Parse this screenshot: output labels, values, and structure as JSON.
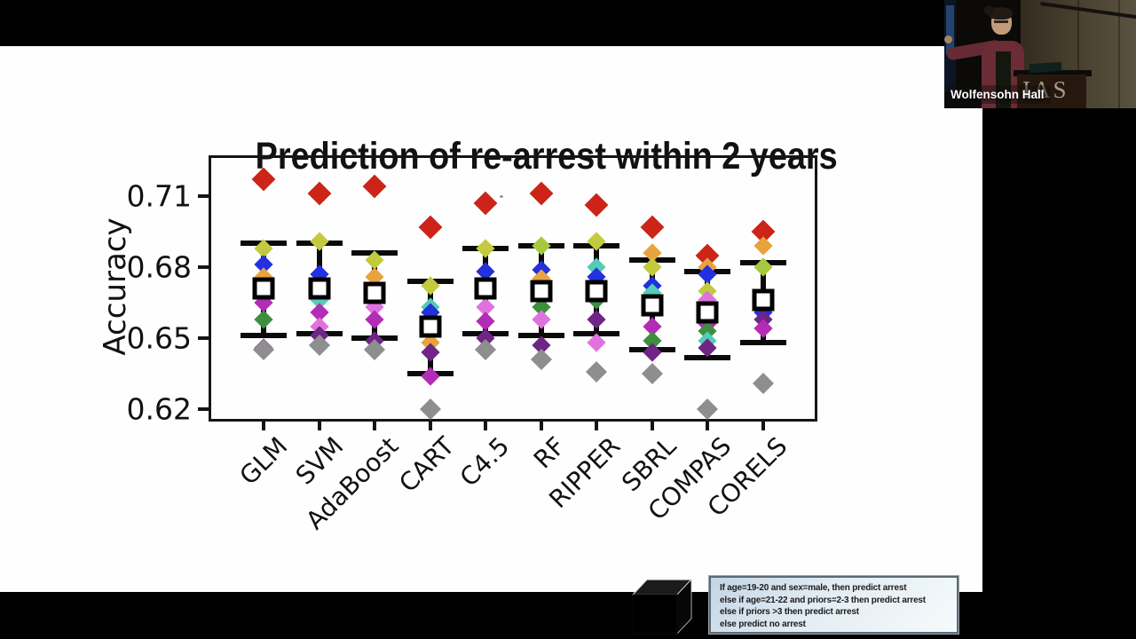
{
  "webcam": {
    "location_label": "Wolfensohn Hall",
    "podium_text": "IAS"
  },
  "slide": {
    "title": "Prediction of re-arrest within 2 years",
    "rule_box_lines": [
      "If age=19-20 and sex=male, then predict arrest",
      "else if age=21-22 and priors=2-3 then predict arrest",
      "else if priors >3 then predict arrest",
      "else predict no arrest"
    ]
  },
  "chart_data": {
    "type": "scatter",
    "title": "Prediction of re-arrest within 2 years",
    "xlabel": "",
    "ylabel": "Accuracy",
    "categories": [
      "GLM",
      "SVM",
      "AdaBoost",
      "CART",
      "C4.5",
      "RF",
      "RIPPER",
      "SBRL",
      "COMPAS",
      "CORELS"
    ],
    "ytick_values": [
      0.71,
      0.68,
      0.65,
      0.62
    ],
    "ytick_labels": [
      "0.71",
      "0.68",
      "0.65",
      "0.62"
    ],
    "ylim": [
      0.616,
      0.726
    ],
    "grid": false,
    "legend": "none",
    "point_marker": "diamond",
    "mean_marker": "open-square-with-error-bars",
    "palette": {
      "red": "#cc2418",
      "orange": "#e8a33c",
      "khaki": "#c2ca3e",
      "lime": "#a5c93e",
      "blue": "#2231dd",
      "teal": "#56cbb8",
      "green": "#3c8f3f",
      "magenta": "#b32cb5",
      "orchid": "#df72df",
      "purple": "#6e2585",
      "gray": "#8e8e8e"
    },
    "columns": [
      {
        "label": "GLM",
        "mean": 0.671,
        "whisker_low": 0.651,
        "whisker_high": 0.69,
        "points": [
          {
            "c": "red",
            "v": 0.717
          },
          {
            "c": "khaki",
            "v": 0.688
          },
          {
            "c": "blue",
            "v": 0.681
          },
          {
            "c": "orange",
            "v": 0.676
          },
          {
            "c": "magenta",
            "v": 0.665
          },
          {
            "c": "green",
            "v": 0.658
          },
          {
            "c": "purple",
            "v": 0.646
          },
          {
            "c": "gray",
            "v": 0.645
          }
        ]
      },
      {
        "label": "SVM",
        "mean": 0.671,
        "whisker_low": 0.652,
        "whisker_high": 0.69,
        "points": [
          {
            "c": "red",
            "v": 0.711
          },
          {
            "c": "khaki",
            "v": 0.691
          },
          {
            "c": "blue",
            "v": 0.677
          },
          {
            "c": "teal",
            "v": 0.666
          },
          {
            "c": "magenta",
            "v": 0.661
          },
          {
            "c": "orchid",
            "v": 0.655
          },
          {
            "c": "purple",
            "v": 0.651
          },
          {
            "c": "gray",
            "v": 0.647
          }
        ]
      },
      {
        "label": "AdaBoost",
        "mean": 0.669,
        "whisker_low": 0.65,
        "whisker_high": 0.686,
        "points": [
          {
            "c": "red",
            "v": 0.714
          },
          {
            "c": "khaki",
            "v": 0.683
          },
          {
            "c": "orange",
            "v": 0.676
          },
          {
            "c": "orchid",
            "v": 0.663
          },
          {
            "c": "magenta",
            "v": 0.658
          },
          {
            "c": "purple",
            "v": 0.649
          },
          {
            "c": "gray",
            "v": 0.645
          }
        ]
      },
      {
        "label": "CART",
        "mean": 0.655,
        "whisker_low": 0.635,
        "whisker_high": 0.674,
        "points": [
          {
            "c": "red",
            "v": 0.697
          },
          {
            "c": "khaki",
            "v": 0.672
          },
          {
            "c": "teal",
            "v": 0.663
          },
          {
            "c": "blue",
            "v": 0.661
          },
          {
            "c": "orange",
            "v": 0.648
          },
          {
            "c": "purple",
            "v": 0.644
          },
          {
            "c": "magenta",
            "v": 0.634
          },
          {
            "c": "gray",
            "v": 0.62
          }
        ]
      },
      {
        "label": "C4.5",
        "mean": 0.671,
        "whisker_low": 0.652,
        "whisker_high": 0.688,
        "points": [
          {
            "c": "red",
            "v": 0.707
          },
          {
            "c": "khaki",
            "v": 0.688
          },
          {
            "c": "blue",
            "v": 0.678
          },
          {
            "c": "orchid",
            "v": 0.663
          },
          {
            "c": "magenta",
            "v": 0.657
          },
          {
            "c": "purple",
            "v": 0.65
          },
          {
            "c": "gray",
            "v": 0.645
          }
        ]
      },
      {
        "label": "RF",
        "mean": 0.67,
        "whisker_low": 0.651,
        "whisker_high": 0.689,
        "points": [
          {
            "c": "red",
            "v": 0.711
          },
          {
            "c": "lime",
            "v": 0.689
          },
          {
            "c": "blue",
            "v": 0.679
          },
          {
            "c": "orange",
            "v": 0.675
          },
          {
            "c": "green",
            "v": 0.663
          },
          {
            "c": "orchid",
            "v": 0.658
          },
          {
            "c": "purple",
            "v": 0.647
          },
          {
            "c": "gray",
            "v": 0.641
          }
        ]
      },
      {
        "label": "RIPPER",
        "mean": 0.67,
        "whisker_low": 0.652,
        "whisker_high": 0.689,
        "points": [
          {
            "c": "red",
            "v": 0.706
          },
          {
            "c": "khaki",
            "v": 0.691
          },
          {
            "c": "teal",
            "v": 0.68
          },
          {
            "c": "blue",
            "v": 0.676
          },
          {
            "c": "green",
            "v": 0.666
          },
          {
            "c": "purple",
            "v": 0.658
          },
          {
            "c": "orchid",
            "v": 0.648
          },
          {
            "c": "gray",
            "v": 0.636
          }
        ]
      },
      {
        "label": "SBRL",
        "mean": 0.664,
        "whisker_low": 0.645,
        "whisker_high": 0.683,
        "points": [
          {
            "c": "red",
            "v": 0.697
          },
          {
            "c": "orange",
            "v": 0.686
          },
          {
            "c": "khaki",
            "v": 0.68
          },
          {
            "c": "blue",
            "v": 0.672
          },
          {
            "c": "teal",
            "v": 0.669
          },
          {
            "c": "magenta",
            "v": 0.655
          },
          {
            "c": "green",
            "v": 0.649
          },
          {
            "c": "purple",
            "v": 0.644
          },
          {
            "c": "gray",
            "v": 0.635
          }
        ]
      },
      {
        "label": "COMPAS",
        "mean": 0.661,
        "whisker_low": 0.642,
        "whisker_high": 0.678,
        "points": [
          {
            "c": "red",
            "v": 0.685
          },
          {
            "c": "orange",
            "v": 0.68
          },
          {
            "c": "blue",
            "v": 0.677
          },
          {
            "c": "khaki",
            "v": 0.67
          },
          {
            "c": "orchid",
            "v": 0.666
          },
          {
            "c": "magenta",
            "v": 0.656
          },
          {
            "c": "green",
            "v": 0.653
          },
          {
            "c": "teal",
            "v": 0.649
          },
          {
            "c": "purple",
            "v": 0.646
          },
          {
            "c": "gray",
            "v": 0.62
          }
        ]
      },
      {
        "label": "CORELS",
        "mean": 0.666,
        "whisker_low": 0.648,
        "whisker_high": 0.682,
        "points": [
          {
            "c": "red",
            "v": 0.695
          },
          {
            "c": "orange",
            "v": 0.689
          },
          {
            "c": "lime",
            "v": 0.68
          },
          {
            "c": "blue",
            "v": 0.661
          },
          {
            "c": "purple",
            "v": 0.658
          },
          {
            "c": "magenta",
            "v": 0.654
          },
          {
            "c": "gray",
            "v": 0.631
          }
        ]
      }
    ]
  }
}
